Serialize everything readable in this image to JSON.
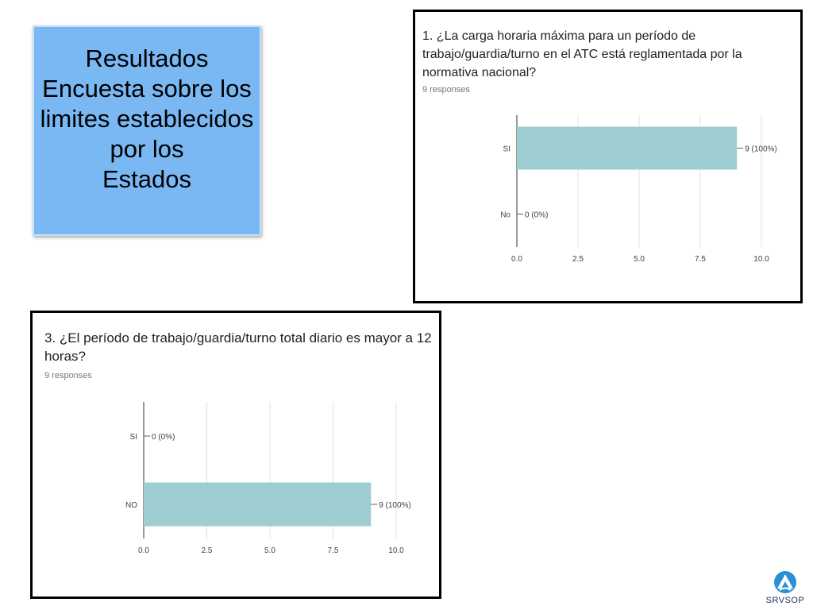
{
  "title_box": {
    "text": "Resultados\nEncuesta sobre los\nlimites establecidos\npor los\nEstados"
  },
  "charts": [
    {
      "question": "1. ¿La carga horaria máxima para un período de trabajo/guardia/turno en el ATC está reglamentada por la normativa nacional?",
      "responses": "9 responses"
    },
    {
      "question": "3. ¿El período de trabajo/guardia/turno total diario es mayor a 12 horas?",
      "responses": "9 responses"
    }
  ],
  "chart_data": [
    {
      "type": "bar",
      "orientation": "horizontal",
      "categories": [
        "SI",
        "No"
      ],
      "values": [
        9,
        0
      ],
      "data_labels": [
        "9 (100%)",
        "0 (0%)"
      ],
      "xlim": [
        0,
        10
      ],
      "xticks": [
        "0.0",
        "2.5",
        "5.0",
        "7.5",
        "10.0"
      ],
      "grid": true,
      "bar_color": "#9ecdd2"
    },
    {
      "type": "bar",
      "orientation": "horizontal",
      "categories": [
        "SI",
        "NO"
      ],
      "values": [
        0,
        9
      ],
      "data_labels": [
        "0 (0%)",
        "9 (100%)"
      ],
      "xlim": [
        0,
        10
      ],
      "xticks": [
        "0.0",
        "2.5",
        "5.0",
        "7.5",
        "10.0"
      ],
      "grid": true,
      "bar_color": "#9ecdd2"
    }
  ],
  "logo": {
    "text": "SRVSOP",
    "icon": "srvsop-logo-icon",
    "color": "#2b8fd6"
  }
}
